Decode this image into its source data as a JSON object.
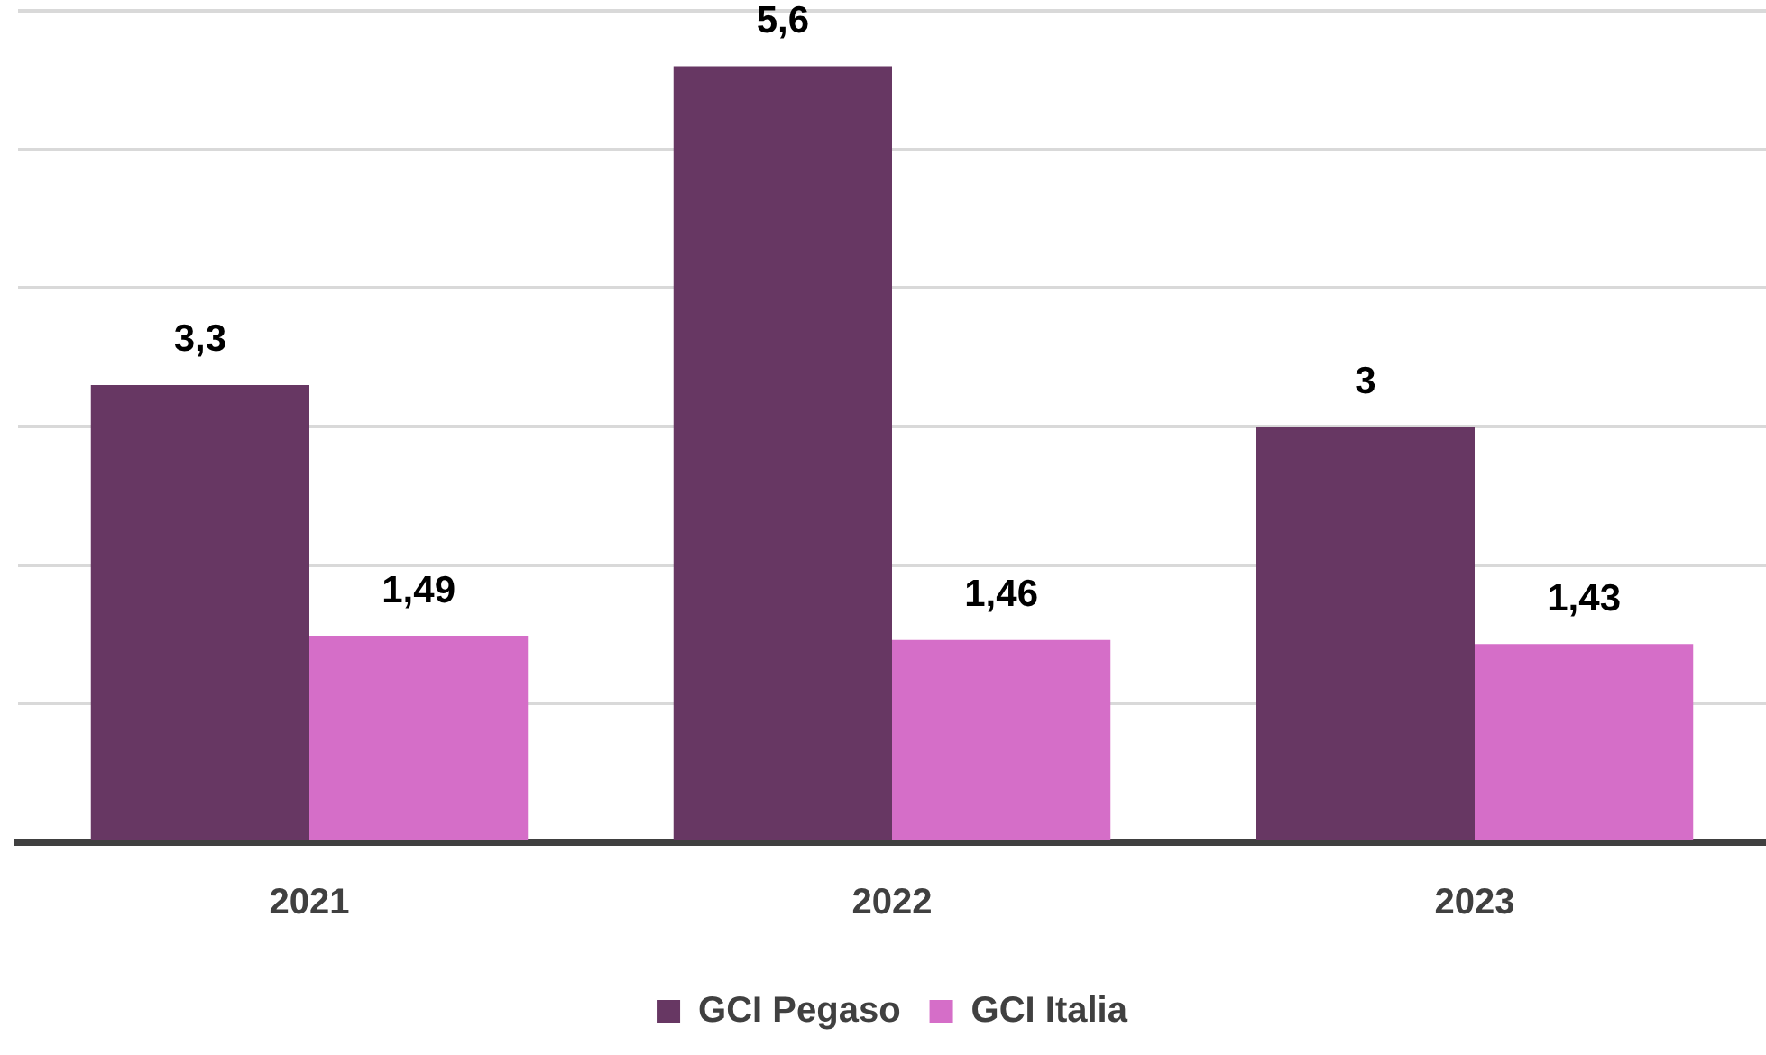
{
  "chart_data": {
    "type": "bar",
    "categories": [
      "2021",
      "2022",
      "2023"
    ],
    "series": [
      {
        "name": "GCI Pegaso",
        "color": "#673763",
        "values": [
          3.3,
          5.6,
          3
        ],
        "value_labels": [
          "3,3",
          "5,6",
          "3"
        ]
      },
      {
        "name": "GCI Italia",
        "color": "#d56ec8",
        "values": [
          1.49,
          1.46,
          1.43
        ],
        "value_labels": [
          "1,49",
          "1,46",
          "1,43"
        ]
      }
    ],
    "ylim": [
      0,
      6
    ],
    "yticks": [
      {
        "value": 0,
        "label": null
      },
      {
        "value": 1,
        "label": null
      },
      {
        "value": 2,
        "label": null
      },
      {
        "value": 3,
        "label": null
      },
      {
        "value": 4,
        "label": null
      },
      {
        "value": 5,
        "label": null
      },
      {
        "value": 6,
        "label": null
      }
    ],
    "grid": "y",
    "legend": "bottom",
    "tick_labels": "x"
  }
}
